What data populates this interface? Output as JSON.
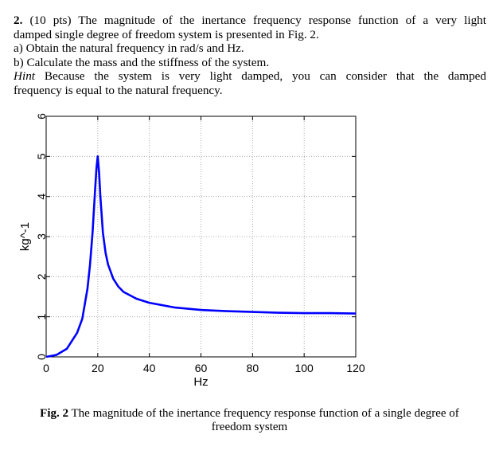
{
  "problem": {
    "number": "2.",
    "points": "(10 pts)",
    "intro_line1": "The magnitude of the inertance frequency response function of a very light",
    "intro_line2": "damped single degree of freedom system is presented in Fig. 2.",
    "part_a": "a) Obtain the natural frequency in rad/s and Hz.",
    "part_b": "b) Calculate the mass and the stiffness of the system.",
    "hint_label": "Hint",
    "hint_line1": "Because the system is very light damped, you can consider that the damped",
    "hint_line2": "frequency is equal to the natural frequency."
  },
  "chart_data": {
    "type": "line",
    "xlabel": "Hz",
    "ylabel": "kg^-1",
    "xlim": [
      0,
      120
    ],
    "ylim": [
      0,
      6
    ],
    "xticks": [
      "0",
      "20",
      "40",
      "60",
      "80",
      "100",
      "120"
    ],
    "yticks": [
      "0",
      "1",
      "2",
      "3",
      "4",
      "5",
      "6"
    ],
    "grid": true,
    "line_color": "#0000ff",
    "series": [
      {
        "x": [
          0,
          4,
          8,
          12,
          14,
          16,
          17,
          18,
          19,
          19.5,
          20,
          20.5,
          21,
          22,
          23,
          24,
          26,
          28,
          30,
          35,
          40,
          50,
          60,
          70,
          80,
          90,
          100,
          110,
          120
        ],
        "y": [
          0,
          0.05,
          0.2,
          0.6,
          0.95,
          1.7,
          2.3,
          3.1,
          4.2,
          4.7,
          5.0,
          4.6,
          4.0,
          3.1,
          2.6,
          2.3,
          1.95,
          1.75,
          1.62,
          1.45,
          1.35,
          1.23,
          1.17,
          1.14,
          1.12,
          1.1,
          1.09,
          1.09,
          1.08
        ]
      }
    ]
  },
  "caption": {
    "label": "Fig. 2",
    "text_line1": "The magnitude of the inertance frequency response function of a single degree of",
    "text_line2": "freedom system"
  }
}
